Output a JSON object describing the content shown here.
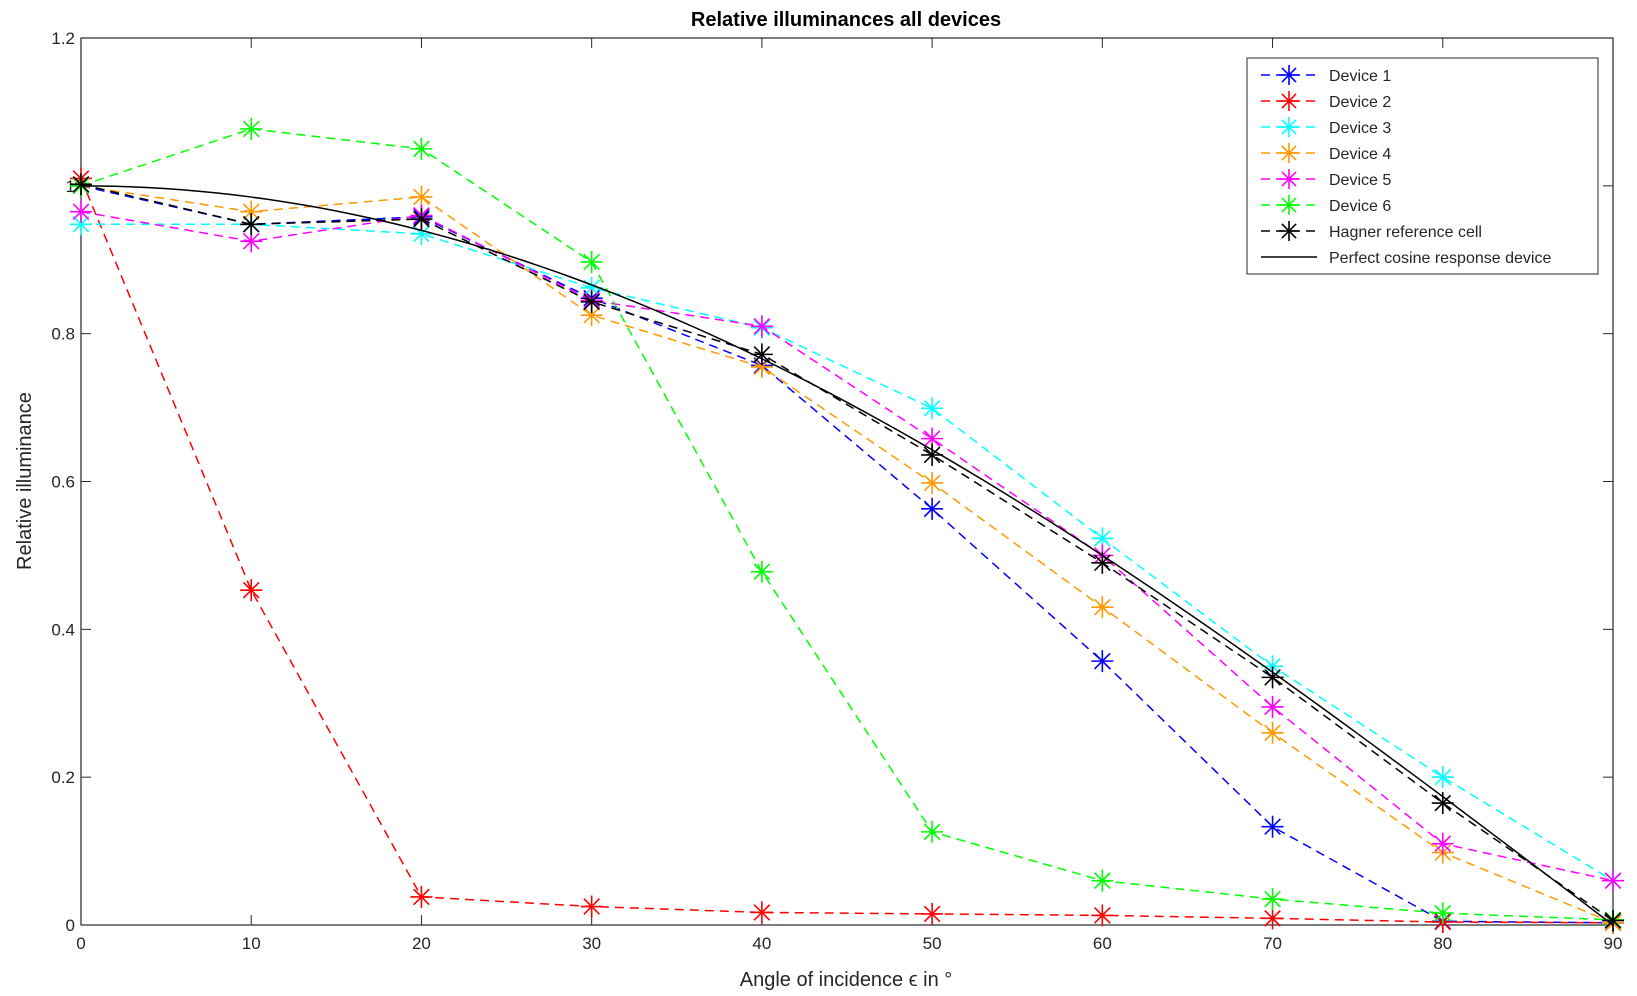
{
  "chart_data": {
    "type": "line",
    "title": "Relative illuminances all devices",
    "xlabel": "Angle of incidence ϵ in °",
    "ylabel": "Relative illuminance",
    "xlim": [
      0,
      90
    ],
    "ylim": [
      0,
      1.2
    ],
    "x_ticks": [
      "0",
      "10",
      "20",
      "30",
      "40",
      "50",
      "60",
      "70",
      "80",
      "90"
    ],
    "y_ticks": [
      "0",
      "0.2",
      "0.4",
      "0.6",
      "0.8",
      "1",
      "1.2"
    ],
    "grid": false,
    "legend_position": "top-right",
    "x": [
      0,
      10,
      20,
      30,
      40,
      50,
      60,
      70,
      80,
      90
    ],
    "series": [
      {
        "name": "Device 1",
        "color": "#0000ff",
        "line_style": "dashed",
        "marker": "asterisk",
        "values": [
          1.0,
          0.948,
          0.958,
          0.848,
          0.757,
          0.563,
          0.357,
          0.133,
          0.005,
          0.003
        ]
      },
      {
        "name": "Device 2",
        "color": "#ff0000",
        "line_style": "dashed",
        "marker": "asterisk",
        "values": [
          1.01,
          0.453,
          0.038,
          0.025,
          0.017,
          0.015,
          0.013,
          0.009,
          0.004,
          0.003
        ]
      },
      {
        "name": "Device 3",
        "color": "#00ffff",
        "line_style": "dashed",
        "marker": "asterisk",
        "values": [
          0.948,
          0.948,
          0.935,
          0.862,
          0.808,
          0.699,
          0.523,
          0.35,
          0.2,
          0.06
        ]
      },
      {
        "name": "Device 4",
        "color": "#ff9900",
        "line_style": "dashed",
        "marker": "asterisk",
        "values": [
          1.0,
          0.965,
          0.985,
          0.825,
          0.755,
          0.598,
          0.43,
          0.26,
          0.098,
          0.003
        ]
      },
      {
        "name": "Device 5",
        "color": "#ff00ff",
        "line_style": "dashed",
        "marker": "asterisk",
        "values": [
          0.965,
          0.925,
          0.96,
          0.845,
          0.81,
          0.658,
          0.5,
          0.295,
          0.11,
          0.06
        ]
      },
      {
        "name": "Device 6",
        "color": "#00ff00",
        "line_style": "dashed",
        "marker": "asterisk",
        "values": [
          1.0,
          1.077,
          1.05,
          0.897,
          0.478,
          0.126,
          0.06,
          0.035,
          0.016,
          0.007
        ]
      },
      {
        "name": "Hagner reference cell",
        "color": "#000000",
        "line_style": "dashed",
        "marker": "asterisk",
        "values": [
          1.002,
          0.948,
          0.955,
          0.843,
          0.772,
          0.636,
          0.49,
          0.335,
          0.165,
          0.006
        ]
      },
      {
        "name": "Perfect cosine response device",
        "color": "#000000",
        "line_style": "solid",
        "marker": "none",
        "function": "cos"
      }
    ]
  }
}
